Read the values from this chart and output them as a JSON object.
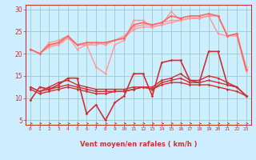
{
  "x": [
    0,
    1,
    2,
    3,
    4,
    5,
    6,
    7,
    8,
    9,
    10,
    11,
    12,
    13,
    14,
    15,
    16,
    17,
    18,
    19,
    20,
    21,
    22,
    23
  ],
  "series": [
    {
      "color": "#FF9999",
      "lw": 1.0,
      "y": [
        21.0,
        20.0,
        22.0,
        22.0,
        24.0,
        21.0,
        22.0,
        17.0,
        15.5,
        22.0,
        23.0,
        27.5,
        27.5,
        26.0,
        26.5,
        29.5,
        27.5,
        28.0,
        28.0,
        28.5,
        24.5,
        24.0,
        24.0,
        16.0
      ]
    },
    {
      "color": "#FF9999",
      "lw": 1.0,
      "y": [
        21.0,
        20.0,
        22.5,
        23.0,
        24.0,
        22.0,
        22.0,
        22.5,
        22.0,
        23.0,
        24.0,
        26.0,
        26.5,
        26.5,
        27.0,
        27.5,
        27.5,
        28.0,
        28.0,
        28.5,
        28.5,
        24.0,
        24.5,
        16.5
      ]
    },
    {
      "color": "#FF9999",
      "lw": 1.0,
      "y": [
        21.0,
        20.0,
        21.5,
        22.0,
        23.5,
        22.0,
        22.0,
        22.0,
        22.5,
        23.0,
        23.5,
        25.5,
        26.0,
        26.0,
        26.5,
        27.0,
        27.5,
        28.0,
        28.0,
        28.5,
        28.5,
        24.0,
        24.5,
        17.0
      ]
    },
    {
      "color": "#FF6666",
      "lw": 1.2,
      "y": [
        21.0,
        20.0,
        22.0,
        22.5,
        24.0,
        22.0,
        22.5,
        22.5,
        22.5,
        23.0,
        23.5,
        26.5,
        27.0,
        26.5,
        27.0,
        28.5,
        28.0,
        28.5,
        28.5,
        29.0,
        28.5,
        24.0,
        24.5,
        16.5
      ]
    },
    {
      "color": "#CC3333",
      "lw": 1.2,
      "y": [
        9.5,
        12.5,
        12.0,
        13.0,
        14.5,
        14.5,
        6.5,
        8.5,
        5.0,
        9.0,
        10.5,
        15.5,
        15.5,
        10.5,
        18.0,
        18.5,
        18.5,
        14.0,
        13.5,
        20.5,
        20.5,
        13.0,
        12.5,
        10.5
      ]
    },
    {
      "color": "#CC3333",
      "lw": 1.0,
      "y": [
        12.5,
        11.5,
        12.5,
        13.5,
        14.0,
        13.0,
        12.5,
        12.0,
        12.0,
        12.0,
        12.0,
        12.5,
        12.5,
        12.0,
        13.0,
        13.5,
        13.5,
        13.0,
        13.0,
        13.0,
        12.5,
        12.0,
        11.5,
        10.5
      ]
    },
    {
      "color": "#CC3333",
      "lw": 1.0,
      "y": [
        12.5,
        11.5,
        12.0,
        12.5,
        13.0,
        12.5,
        12.0,
        11.5,
        11.5,
        11.5,
        11.5,
        12.0,
        12.5,
        12.0,
        13.5,
        14.0,
        14.5,
        13.5,
        13.5,
        14.0,
        13.5,
        13.0,
        12.5,
        10.5
      ]
    },
    {
      "color": "#CC3333",
      "lw": 1.0,
      "y": [
        12.0,
        11.0,
        11.5,
        12.0,
        12.5,
        12.0,
        11.5,
        11.0,
        11.0,
        11.5,
        11.5,
        12.0,
        12.5,
        12.5,
        14.0,
        14.5,
        15.5,
        14.0,
        14.0,
        15.0,
        14.5,
        13.5,
        12.5,
        10.5
      ]
    }
  ],
  "xlabel": "Vent moyen/en rafales ( km/h )",
  "xlim_min": -0.5,
  "xlim_max": 23.5,
  "ylim_min": 4,
  "ylim_max": 31,
  "yticks": [
    5,
    10,
    15,
    20,
    25,
    30
  ],
  "xticks": [
    0,
    1,
    2,
    3,
    4,
    5,
    6,
    7,
    8,
    9,
    10,
    11,
    12,
    13,
    14,
    15,
    16,
    17,
    18,
    19,
    20,
    21,
    22,
    23
  ],
  "bg_color": "#cceeff",
  "grid_color": "#99cccc",
  "tick_color": "#CC3333",
  "label_color": "#CC3333"
}
